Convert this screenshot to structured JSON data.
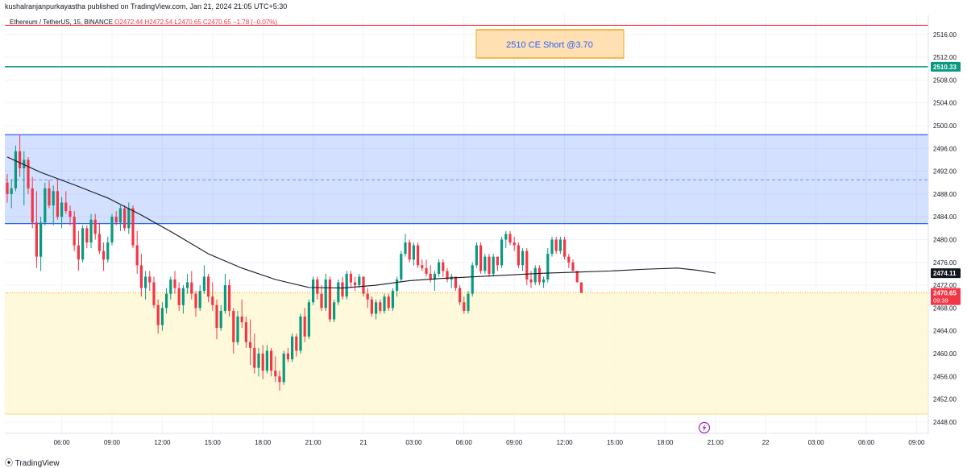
{
  "header": {
    "published": "kushalranjanpurkayastha published on TradingView.com, Jan 21, 2024 21:05 UTC+5:30"
  },
  "legend": {
    "symbol": "Ethereum / TetherUS, 15, BINANCE",
    "ohlc": "O2472.44  H2472.54  L2470.65  C2470.65  −1.78 (−0.07%)"
  },
  "footer": {
    "brand": "TradingView",
    "logo_icon": "tradingview-logo-icon"
  },
  "annotation": {
    "text": "2510 CE Short @3.70"
  },
  "price_labels": {
    "green_line": "2510.33",
    "ma_value": "2474.11",
    "last_price": "2470.65",
    "countdown": "09:39"
  },
  "colors": {
    "up": "#089981",
    "down": "#f23645",
    "ma": "#131722",
    "zone_blue": "#2962ff",
    "zone_yellow": "#fff8d5",
    "red_line": "#f23645",
    "green_line": "#089981"
  },
  "replay_icon": "lightning-icon",
  "chart_data": {
    "type": "candlestick",
    "ylim": [
      2446.0,
      2519.5
    ],
    "yticks": [
      2448,
      2452,
      2456,
      2460,
      2464,
      2468,
      2472,
      2476,
      2480,
      2484,
      2488,
      2492,
      2496,
      2500,
      2504,
      2508,
      2512,
      2516
    ],
    "ytick_labels": [
      "2448.00",
      "2452.00",
      "2456.00",
      "2460.00",
      "2464.00",
      "2468.00",
      "2472.00",
      "2476.00",
      "2480.00",
      "2484.00",
      "2488.00",
      "2492.00",
      "2496.00",
      "2500.00",
      "2504.00",
      "2508.00",
      "2512.00",
      "2516.00"
    ],
    "xticks": [
      "06:00",
      "09:00",
      "12:00",
      "15:00",
      "18:00",
      "21:00",
      "21",
      "03:00",
      "06:00",
      "09:00",
      "12:00",
      "15:00",
      "18:00",
      "21:00",
      "22",
      "03:00",
      "06:00",
      "09:00"
    ],
    "xtick_index": [
      13,
      25,
      37,
      49,
      61,
      73,
      85,
      97,
      109,
      121,
      133,
      145,
      157,
      169,
      181,
      193,
      205,
      217
    ],
    "levels": {
      "red_line": 2517.6,
      "green_line": 2510.33,
      "blue_zone": [
        2482.8,
        2498.4
      ],
      "blue_zone_mid": 2490.5,
      "yellow_zone": [
        2449.4,
        2470.8
      ],
      "last_price": 2470.65
    },
    "candles": [
      [
        2490,
        2491.5,
        2486.5,
        2488
      ],
      [
        2488,
        2490.5,
        2485.5,
        2489
      ],
      [
        2489,
        2496.5,
        2488.5,
        2495.5
      ],
      [
        2495.5,
        2498.5,
        2491,
        2492.5
      ],
      [
        2492.5,
        2495.5,
        2486,
        2494
      ],
      [
        2494,
        2494.5,
        2488,
        2489
      ],
      [
        2489,
        2491,
        2482,
        2483
      ],
      [
        2483,
        2488.5,
        2475,
        2477
      ],
      [
        2477,
        2484,
        2474.5,
        2483
      ],
      [
        2483,
        2490,
        2482.5,
        2489
      ],
      [
        2489,
        2490.5,
        2485.5,
        2486
      ],
      [
        2486,
        2489.5,
        2482.5,
        2488.5
      ],
      [
        2488.5,
        2490.5,
        2483.5,
        2484
      ],
      [
        2484,
        2487.5,
        2482,
        2486.5
      ],
      [
        2486.5,
        2488.5,
        2484.5,
        2485
      ],
      [
        2485,
        2486,
        2482.5,
        2484
      ],
      [
        2484,
        2485,
        2478,
        2479
      ],
      [
        2479,
        2481.5,
        2474.5,
        2476.5
      ],
      [
        2476.5,
        2482.5,
        2476,
        2482
      ],
      [
        2482,
        2482.5,
        2478.5,
        2479.5
      ],
      [
        2479.5,
        2484.5,
        2478.5,
        2483.5
      ],
      [
        2483.5,
        2484.5,
        2480,
        2481
      ],
      [
        2481,
        2483,
        2477.5,
        2478
      ],
      [
        2478,
        2479.5,
        2474.5,
        2476.5
      ],
      [
        2476.5,
        2480.5,
        2476,
        2479.5
      ],
      [
        2479.5,
        2484.5,
        2479,
        2484
      ],
      [
        2484,
        2485,
        2482.5,
        2483
      ],
      [
        2483,
        2486,
        2481.5,
        2485.5
      ],
      [
        2485.5,
        2486,
        2481.5,
        2482
      ],
      [
        2482,
        2486.5,
        2481,
        2485.5
      ],
      [
        2485.5,
        2486,
        2478.5,
        2479
      ],
      [
        2479,
        2481.5,
        2474,
        2475.5
      ],
      [
        2475.5,
        2477.5,
        2470,
        2471.5
      ],
      [
        2471.5,
        2474.5,
        2469.5,
        2473.5
      ],
      [
        2473.5,
        2474.5,
        2471,
        2472.5
      ],
      [
        2472.5,
        2473.5,
        2468,
        2468.5
      ],
      [
        2468.5,
        2469.5,
        2463.5,
        2465
      ],
      [
        2465,
        2469,
        2464,
        2468
      ],
      [
        2468,
        2471.5,
        2467,
        2470.5
      ],
      [
        2470.5,
        2473.5,
        2469.5,
        2473
      ],
      [
        2473,
        2474.5,
        2470.5,
        2471.5
      ],
      [
        2471.5,
        2472.5,
        2467.5,
        2468.5
      ],
      [
        2468.5,
        2472,
        2467,
        2471.5
      ],
      [
        2471.5,
        2474,
        2470.5,
        2472.5
      ],
      [
        2472.5,
        2474.5,
        2469.5,
        2470.5
      ],
      [
        2470.5,
        2471,
        2466.5,
        2468
      ],
      [
        2468,
        2472,
        2467.5,
        2471
      ],
      [
        2471,
        2475.5,
        2470.5,
        2473.5
      ],
      [
        2473.5,
        2474,
        2469,
        2470
      ],
      [
        2470,
        2472.5,
        2467.5,
        2468.5
      ],
      [
        2468.5,
        2469.5,
        2462.5,
        2464.5
      ],
      [
        2464.5,
        2468.5,
        2464,
        2467.5
      ],
      [
        2467.5,
        2474,
        2467,
        2472
      ],
      [
        2472,
        2473,
        2466.5,
        2467.5
      ],
      [
        2467.5,
        2468,
        2460,
        2462
      ],
      [
        2462,
        2467.5,
        2461.5,
        2466.5
      ],
      [
        2466.5,
        2469.5,
        2464.5,
        2465.5
      ],
      [
        2465.5,
        2466.5,
        2461,
        2462
      ],
      [
        2462,
        2466,
        2458,
        2461
      ],
      [
        2461,
        2463.5,
        2456.5,
        2457.5
      ],
      [
        2457.5,
        2461,
        2456,
        2460
      ],
      [
        2460,
        2461.5,
        2455.5,
        2457
      ],
      [
        2457,
        2461.5,
        2456.5,
        2460.5
      ],
      [
        2460.5,
        2461,
        2456,
        2457
      ],
      [
        2457,
        2459.5,
        2455,
        2456
      ],
      [
        2456,
        2457,
        2453.5,
        2455
      ],
      [
        2455,
        2460.5,
        2454.5,
        2460
      ],
      [
        2460,
        2461,
        2458.5,
        2459
      ],
      [
        2459,
        2463.5,
        2458.5,
        2463
      ],
      [
        2463,
        2463.5,
        2459.5,
        2460.5
      ],
      [
        2460.5,
        2467,
        2460,
        2466.5
      ],
      [
        2466.5,
        2468,
        2462,
        2463
      ],
      [
        2463,
        2469.5,
        2462.5,
        2469
      ],
      [
        2469,
        2473.5,
        2468.5,
        2473
      ],
      [
        2473,
        2473.5,
        2469.5,
        2470.5
      ],
      [
        2470.5,
        2472,
        2467.5,
        2468
      ],
      [
        2468,
        2474,
        2467.5,
        2473
      ],
      [
        2473,
        2473.5,
        2465.5,
        2466
      ],
      [
        2466,
        2469.5,
        2465.5,
        2469
      ],
      [
        2469,
        2473,
        2468.5,
        2472.5
      ],
      [
        2472.5,
        2473.5,
        2469.5,
        2470
      ],
      [
        2470,
        2474.5,
        2469.5,
        2474
      ],
      [
        2474,
        2474.5,
        2471.5,
        2472.5
      ],
      [
        2472.5,
        2473.5,
        2471,
        2472
      ],
      [
        2472,
        2474,
        2471.5,
        2473.5
      ],
      [
        2473.5,
        2473.5,
        2470,
        2470.5
      ],
      [
        2470.5,
        2471.5,
        2468,
        2469.5
      ],
      [
        2469.5,
        2470,
        2466.5,
        2467
      ],
      [
        2467,
        2469.5,
        2466,
        2469
      ],
      [
        2469,
        2469.5,
        2467,
        2467.5
      ],
      [
        2467.5,
        2470.5,
        2467,
        2470
      ],
      [
        2470,
        2470.5,
        2467.5,
        2468
      ],
      [
        2468,
        2471.5,
        2467.5,
        2471
      ],
      [
        2471,
        2473.5,
        2470,
        2473
      ],
      [
        2473,
        2478,
        2472.5,
        2477.5
      ],
      [
        2477.5,
        2481,
        2477,
        2479.5
      ],
      [
        2479.5,
        2480,
        2476,
        2476.5
      ],
      [
        2476.5,
        2479.5,
        2475.5,
        2479
      ],
      [
        2479,
        2479.5,
        2475,
        2475.5
      ],
      [
        2475.5,
        2476.5,
        2474.5,
        2475
      ],
      [
        2475,
        2476.5,
        2473.5,
        2474
      ],
      [
        2474,
        2475.5,
        2472.5,
        2473
      ],
      [
        2473,
        2474.5,
        2471,
        2474
      ],
      [
        2474,
        2476.5,
        2473.5,
        2476
      ],
      [
        2476,
        2476.5,
        2473.5,
        2474.5
      ],
      [
        2474.5,
        2475,
        2472.5,
        2473
      ],
      [
        2473,
        2474,
        2471.5,
        2473.5
      ],
      [
        2473.5,
        2473.5,
        2471,
        2471.5
      ],
      [
        2471.5,
        2472,
        2468.5,
        2469
      ],
      [
        2469,
        2470,
        2467,
        2467.5
      ],
      [
        2467.5,
        2471,
        2467,
        2470.5
      ],
      [
        2470.5,
        2476,
        2470,
        2475.5
      ],
      [
        2475.5,
        2479.5,
        2475,
        2479
      ],
      [
        2479,
        2479.5,
        2474,
        2474.5
      ],
      [
        2474.5,
        2477.5,
        2474,
        2477
      ],
      [
        2477,
        2477.5,
        2473.5,
        2474
      ],
      [
        2474,
        2477.5,
        2473.5,
        2477
      ],
      [
        2477,
        2477,
        2474.5,
        2475.5
      ],
      [
        2475.5,
        2480.5,
        2475,
        2480
      ],
      [
        2480,
        2481.5,
        2478.5,
        2481
      ],
      [
        2481,
        2481.5,
        2479,
        2479.5
      ],
      [
        2479.5,
        2480.5,
        2478,
        2479
      ],
      [
        2479,
        2479.5,
        2475,
        2475.5
      ],
      [
        2475.5,
        2478.5,
        2474.5,
        2478
      ],
      [
        2478,
        2478.5,
        2472,
        2473
      ],
      [
        2473,
        2474.5,
        2471.5,
        2472.5
      ],
      [
        2472.5,
        2475.5,
        2472,
        2475
      ],
      [
        2475,
        2475.5,
        2472,
        2472.5
      ],
      [
        2472.5,
        2473.5,
        2471.5,
        2473
      ],
      [
        2473,
        2478.5,
        2472.5,
        2477.5
      ],
      [
        2477.5,
        2480.5,
        2477,
        2480
      ],
      [
        2480,
        2480.5,
        2477.5,
        2478
      ],
      [
        2478,
        2480.5,
        2477.5,
        2480
      ],
      [
        2480,
        2480.5,
        2476.5,
        2477
      ],
      [
        2477,
        2477.5,
        2475,
        2476
      ],
      [
        2476,
        2476.5,
        2474.5,
        2474.5
      ],
      [
        2474.5,
        2474.5,
        2472.5,
        2472.5
      ],
      [
        2472.5,
        2472.5,
        2470.65,
        2470.65
      ]
    ],
    "moving_average": [
      [
        0,
        2494.5
      ],
      [
        8,
        2491.8
      ],
      [
        16,
        2489.6
      ],
      [
        24,
        2487.3
      ],
      [
        32,
        2484.3
      ],
      [
        40,
        2481.0
      ],
      [
        48,
        2477.5
      ],
      [
        56,
        2475.0
      ],
      [
        64,
        2473.0
      ],
      [
        72,
        2471.6
      ],
      [
        80,
        2471.5
      ],
      [
        88,
        2472.0
      ],
      [
        96,
        2472.8
      ],
      [
        104,
        2473.2
      ],
      [
        112,
        2473.5
      ],
      [
        120,
        2473.8
      ],
      [
        128,
        2474.1
      ],
      [
        136,
        2474.3
      ],
      [
        144,
        2474.5
      ],
      [
        152,
        2474.8
      ],
      [
        160,
        2475.0
      ],
      [
        165,
        2474.6
      ],
      [
        169,
        2474.11
      ]
    ]
  }
}
